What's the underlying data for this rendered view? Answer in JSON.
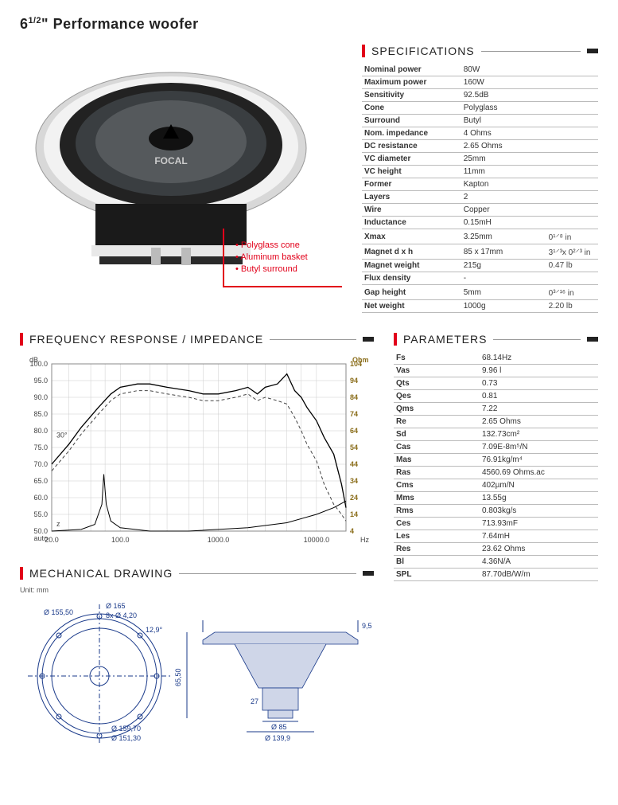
{
  "title_html": "6<span class='sup'>1/2</span>\" Performance woofer",
  "features": [
    "Polyglass cone",
    "Aluminum basket",
    "Butyl surround"
  ],
  "sections": {
    "specs": "SPECIFICATIONS",
    "freq": "FREQUENCY RESPONSE / IMPEDANCE",
    "params": "PARAMETERS",
    "mech": "MECHANICAL DRAWING"
  },
  "unit_note": "Unit: mm",
  "specs": [
    {
      "k": "Nominal power",
      "v": "80W"
    },
    {
      "k": "Maximum power",
      "v": "160W"
    },
    {
      "k": "Sensitivity",
      "v": "92.5dB"
    },
    {
      "k": "Cone",
      "v": "Polyglass"
    },
    {
      "k": "Surround",
      "v": "Butyl"
    },
    {
      "k": "Nom. impedance",
      "v": "4 Ohms"
    },
    {
      "k": "DC resistance",
      "v": "2.65 Ohms"
    },
    {
      "k": "VC diameter",
      "v": "25mm"
    },
    {
      "k": "VC height",
      "v": "11mm"
    },
    {
      "k": "Former",
      "v": "Kapton"
    },
    {
      "k": "Layers",
      "v": "2"
    },
    {
      "k": "Wire",
      "v": "Copper"
    },
    {
      "k": "Inductance",
      "v": "0.15mH"
    },
    {
      "k": "Xmax",
      "v": "3.25mm",
      "v2": "0¹⸍⁸ in"
    },
    {
      "k": "Magnet d x h",
      "v": "85 x 17mm",
      "v2": "3¹⸍³x 0²⸍³ in"
    },
    {
      "k": "Magnet weight",
      "v": "215g",
      "v2": "0.47 lb"
    },
    {
      "k": "Flux density",
      "v": "-"
    },
    {
      "k": "Gap height",
      "v": "5mm",
      "v2": "0³⸍¹⁶ in"
    },
    {
      "k": "Net weight",
      "v": "1000g",
      "v2": "2.20 lb"
    }
  ],
  "params": [
    {
      "k": "Fs",
      "v": "68.14Hz"
    },
    {
      "k": "Vas",
      "v": "9.96 l"
    },
    {
      "k": "Qts",
      "v": "0.73"
    },
    {
      "k": "Qes",
      "v": "0.81"
    },
    {
      "k": "Qms",
      "v": "7.22"
    },
    {
      "k": "Re",
      "v": "2.65 Ohms"
    },
    {
      "k": "Sd",
      "v": "132.73cm²"
    },
    {
      "k": "Cas",
      "v": "7.09E-8m⁵/N"
    },
    {
      "k": "Mas",
      "v": "76.91kg/m⁴"
    },
    {
      "k": "Ras",
      "v": "4560.69 Ohms.ac"
    },
    {
      "k": "Cms",
      "v": "402µm/N"
    },
    {
      "k": "Mms",
      "v": "13.55g"
    },
    {
      "k": "Rms",
      "v": "0.803kg/s"
    },
    {
      "k": "Ces",
      "v": "713.93mF"
    },
    {
      "k": "Les",
      "v": "7.64mH"
    },
    {
      "k": "Res",
      "v": "23.62 Ohms"
    },
    {
      "k": "Bl",
      "v": "4.36N/A"
    },
    {
      "k": "SPL",
      "v": "87.70dB/W/m"
    }
  ],
  "chart": {
    "db_label": "dB",
    "ohm_label": "Ohm",
    "hz_label": "Hz",
    "auto_label": "auto",
    "y_left": {
      "min": 50,
      "max": 100,
      "step": 5
    },
    "y_right": [
      104,
      94,
      84,
      74,
      64,
      54,
      44,
      34,
      24,
      14,
      4
    ],
    "x_ticks": [
      20,
      100,
      1000,
      10000
    ],
    "x_labels": [
      "20.0",
      "100.0",
      "1000.0",
      "10000.0"
    ],
    "angle_labels": [
      "30°",
      "z"
    ],
    "grid_color": "#cccccc",
    "response_color": "#000000",
    "impedance_color": "#000000",
    "offaxis_color": "#444444",
    "response": [
      [
        20,
        70
      ],
      [
        30,
        76
      ],
      [
        40,
        81
      ],
      [
        60,
        87
      ],
      [
        80,
        91
      ],
      [
        100,
        93
      ],
      [
        150,
        94
      ],
      [
        200,
        94
      ],
      [
        300,
        93
      ],
      [
        500,
        92
      ],
      [
        700,
        91
      ],
      [
        1000,
        91
      ],
      [
        1500,
        92
      ],
      [
        2000,
        93
      ],
      [
        2500,
        91
      ],
      [
        3000,
        93
      ],
      [
        4000,
        94
      ],
      [
        5000,
        97
      ],
      [
        6000,
        92
      ],
      [
        7000,
        90
      ],
      [
        8000,
        87
      ],
      [
        10000,
        83
      ],
      [
        12000,
        78
      ],
      [
        15000,
        73
      ],
      [
        18000,
        64
      ],
      [
        20000,
        57
      ]
    ],
    "offaxis": [
      [
        20,
        68
      ],
      [
        30,
        74
      ],
      [
        40,
        79
      ],
      [
        60,
        85
      ],
      [
        80,
        89
      ],
      [
        100,
        91
      ],
      [
        150,
        92
      ],
      [
        200,
        92
      ],
      [
        300,
        91
      ],
      [
        500,
        90
      ],
      [
        700,
        89
      ],
      [
        1000,
        89
      ],
      [
        1500,
        90
      ],
      [
        2000,
        91
      ],
      [
        2500,
        89
      ],
      [
        3000,
        90
      ],
      [
        4000,
        89
      ],
      [
        5000,
        88
      ],
      [
        6000,
        84
      ],
      [
        7000,
        80
      ],
      [
        8000,
        76
      ],
      [
        10000,
        71
      ],
      [
        12000,
        64
      ],
      [
        15000,
        58
      ],
      [
        18000,
        55
      ],
      [
        20000,
        53
      ]
    ],
    "impedance": [
      [
        20,
        4
      ],
      [
        40,
        5
      ],
      [
        55,
        8
      ],
      [
        65,
        20
      ],
      [
        68,
        38
      ],
      [
        72,
        20
      ],
      [
        80,
        10
      ],
      [
        100,
        6
      ],
      [
        200,
        4
      ],
      [
        500,
        4
      ],
      [
        1000,
        5
      ],
      [
        2000,
        6
      ],
      [
        5000,
        9
      ],
      [
        10000,
        14
      ],
      [
        15000,
        18
      ],
      [
        20000,
        22
      ]
    ]
  },
  "mech": {
    "dims": [
      "Ø 165",
      "8x Ø 4,20",
      "Ø 155,50",
      "12,9°",
      "Ø 159,70",
      "Ø 151,30",
      "9,5",
      "65,50",
      "27",
      "Ø 85",
      "Ø 139,9"
    ]
  }
}
